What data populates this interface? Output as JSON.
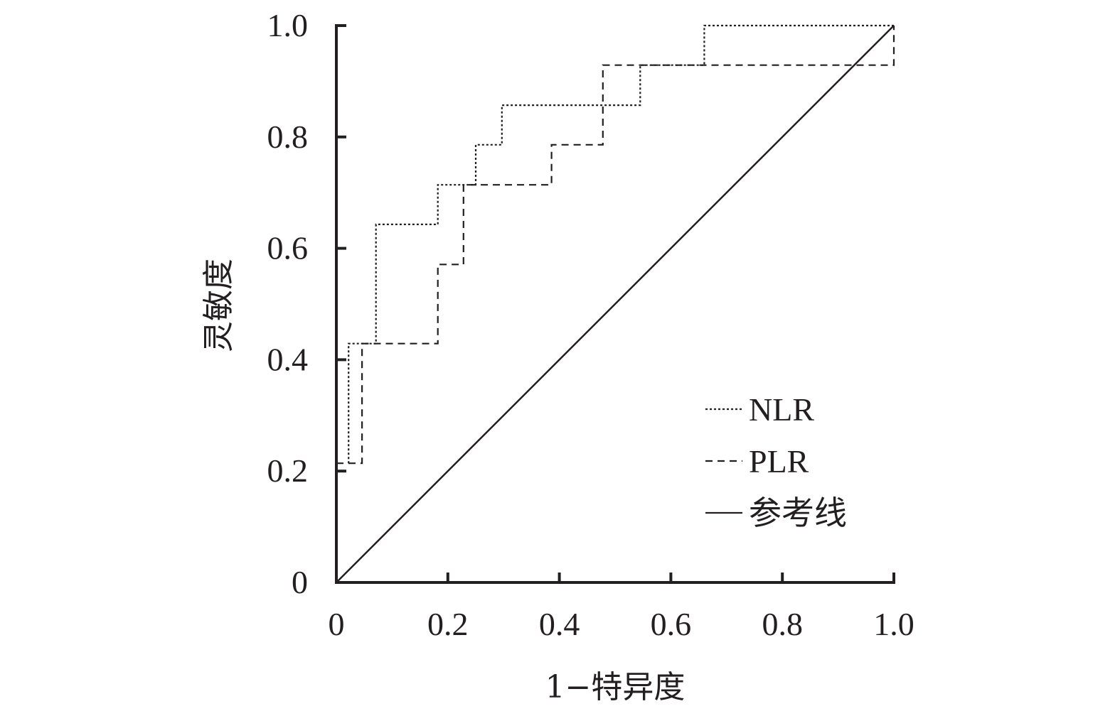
{
  "chart_data": {
    "type": "line",
    "title": "",
    "xlabel": "1−特异度",
    "ylabel": "灵敏度",
    "xlim": [
      0,
      1
    ],
    "ylim": [
      0,
      1
    ],
    "x_ticks": [
      0,
      0.2,
      0.4,
      0.6,
      0.8,
      1.0
    ],
    "x_tick_labels": [
      "0",
      "0.2",
      "0.4",
      "0.6",
      "0.8",
      "1.0"
    ],
    "y_ticks": [
      0,
      0.2,
      0.4,
      0.6,
      0.8,
      1.0
    ],
    "y_tick_labels": [
      "0",
      "0.2",
      "0.4",
      "0.6",
      "0.8",
      "1.0"
    ],
    "grid": false,
    "legend_position": "bottom-right",
    "series": [
      {
        "name": "NLR",
        "style": "dotted",
        "color": "#231f20",
        "points": [
          [
            0.022,
            0.214
          ],
          [
            0.022,
            0.429
          ],
          [
            0.071,
            0.429
          ],
          [
            0.071,
            0.643
          ],
          [
            0.182,
            0.643
          ],
          [
            0.182,
            0.714
          ],
          [
            0.25,
            0.714
          ],
          [
            0.25,
            0.786
          ],
          [
            0.297,
            0.786
          ],
          [
            0.297,
            0.857
          ],
          [
            0.545,
            0.857
          ],
          [
            0.545,
            0.929
          ],
          [
            0.66,
            0.929
          ],
          [
            0.66,
            1.0
          ],
          [
            1.0,
            1.0
          ]
        ]
      },
      {
        "name": "PLR",
        "style": "dashed",
        "color": "#231f20",
        "points": [
          [
            0.0,
            0.214
          ],
          [
            0.046,
            0.214
          ],
          [
            0.046,
            0.429
          ],
          [
            0.182,
            0.429
          ],
          [
            0.182,
            0.571
          ],
          [
            0.228,
            0.571
          ],
          [
            0.228,
            0.714
          ],
          [
            0.386,
            0.714
          ],
          [
            0.386,
            0.786
          ],
          [
            0.478,
            0.786
          ],
          [
            0.478,
            0.929
          ],
          [
            1.0,
            0.929
          ],
          [
            1.0,
            1.0
          ]
        ]
      },
      {
        "name": "参考线",
        "style": "solid",
        "color": "#231f20",
        "points": [
          [
            0,
            0
          ],
          [
            1,
            1
          ]
        ]
      }
    ]
  }
}
